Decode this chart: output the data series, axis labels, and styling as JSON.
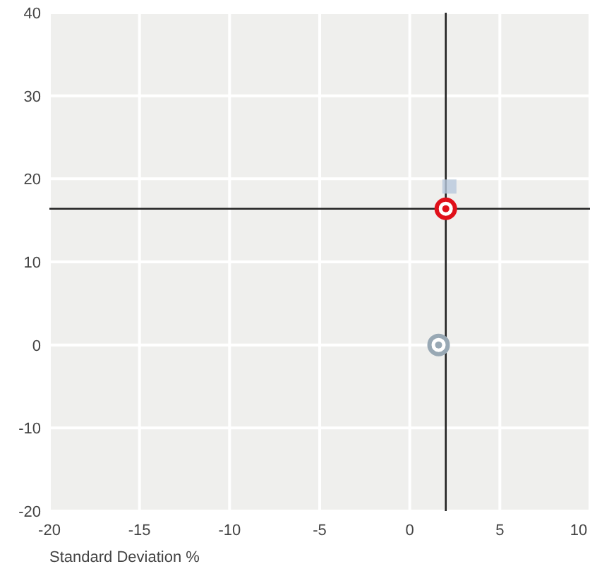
{
  "chart_data": {
    "type": "scatter",
    "xlabel": "Standard Deviation %",
    "xlim": [
      -20,
      10
    ],
    "xticks": [
      -20,
      -15,
      -10,
      -5,
      0,
      5,
      10
    ],
    "ylim": [
      -20,
      40
    ],
    "yticks": [
      -20,
      -10,
      0,
      10,
      20,
      30,
      40
    ],
    "grid": true,
    "ref_lines": [
      {
        "axis": "x",
        "value": 2,
        "color": "#222222"
      },
      {
        "axis": "y",
        "value": 16.4,
        "color": "#222222"
      }
    ],
    "series": [
      {
        "color": "#b8c8dc",
        "marker": "square",
        "x": [
          2.2
        ],
        "values": [
          18.9
        ]
      },
      {
        "color": "#98a8b4",
        "marker": "circle",
        "x": [
          1.6
        ],
        "values": [
          0
        ]
      },
      {
        "color": "#e0101a",
        "marker": "circle",
        "x": [
          2
        ],
        "values": [
          16.4
        ]
      }
    ]
  }
}
